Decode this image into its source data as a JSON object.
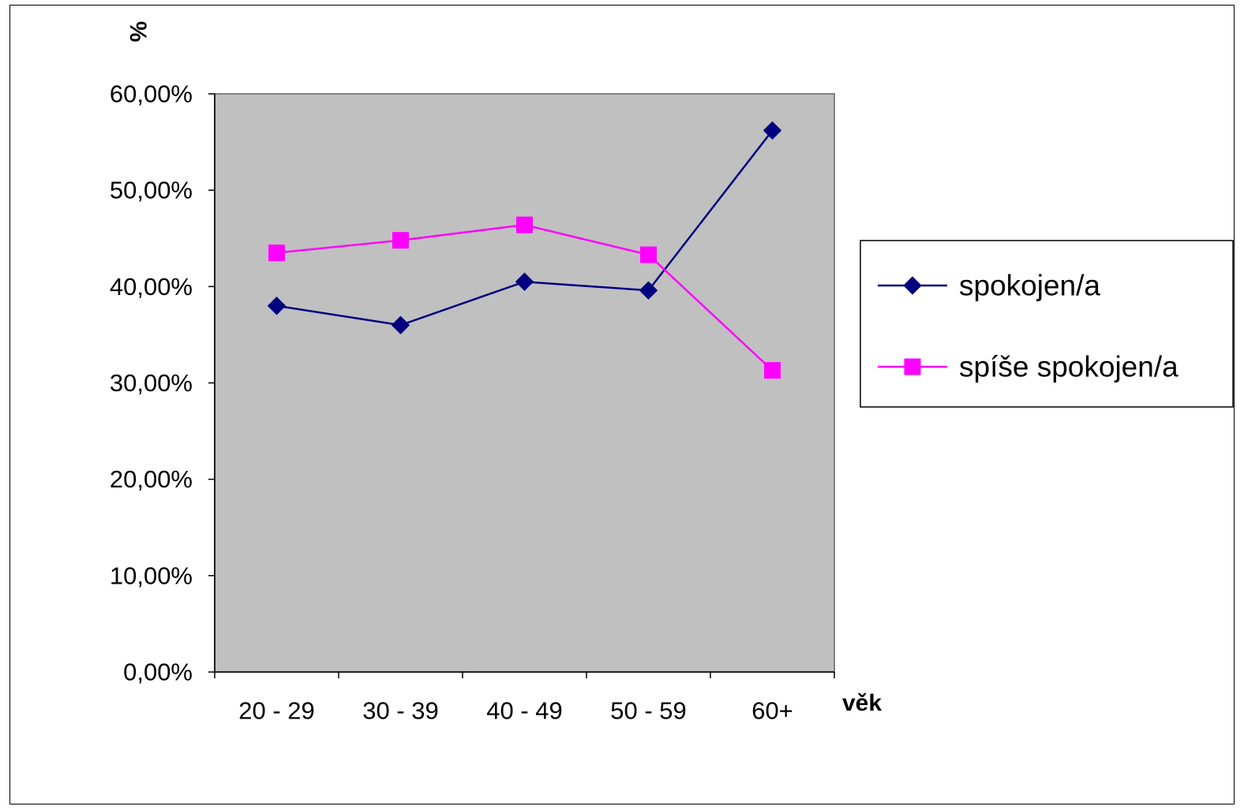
{
  "chart_data": {
    "type": "line",
    "title": "",
    "xlabel": "věk",
    "ylabel": "%",
    "categories": [
      "20 - 29",
      "30 - 39",
      "40 - 49",
      "50 - 59",
      "60+"
    ],
    "ylim": [
      0,
      0.6
    ],
    "yticks": [
      0,
      0.1,
      0.2,
      0.3,
      0.4,
      0.5,
      0.6
    ],
    "ytick_labels": [
      "0,00%",
      "10,00%",
      "20,00%",
      "30,00%",
      "40,00%",
      "50,00%",
      "60,00%"
    ],
    "grid": false,
    "plot_background": "#c0c0c0",
    "legend_position": "right",
    "series": [
      {
        "name": "spokojen/a",
        "values": [
          0.38,
          0.36,
          0.405,
          0.396,
          0.562
        ],
        "color": "#000080",
        "marker": "diamond"
      },
      {
        "name": "spíše spokojen/a",
        "values": [
          0.435,
          0.448,
          0.464,
          0.433,
          0.313
        ],
        "color": "#ff00ff",
        "marker": "square"
      }
    ]
  }
}
